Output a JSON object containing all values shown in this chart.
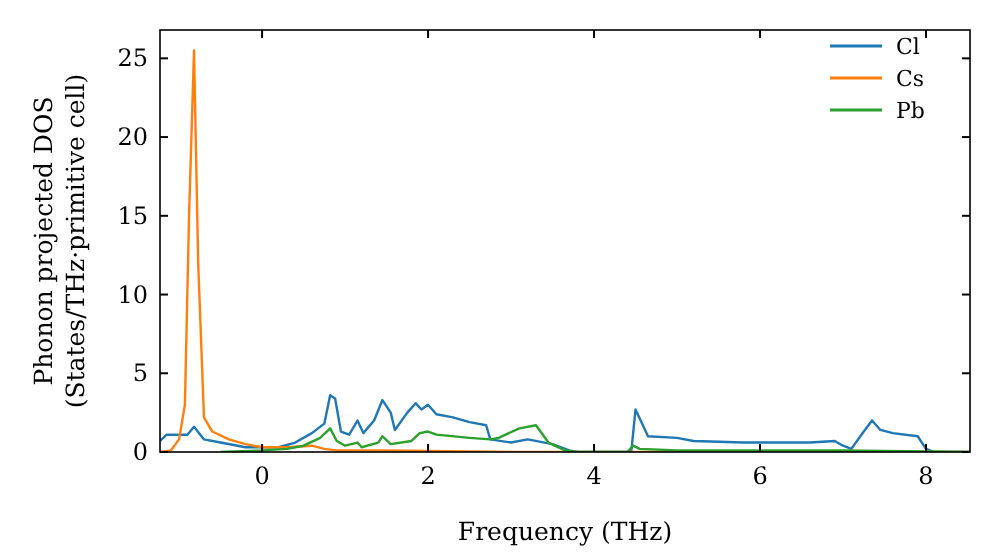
{
  "chart_data": {
    "type": "line",
    "xlabel": "Frequency (THz)",
    "ylabel": "Phonon projected DOS\n(States/THz·primitive cell)",
    "xlim": [
      -1.23,
      8.53
    ],
    "ylim": [
      0,
      26.8
    ],
    "xticks": [
      0,
      2,
      4,
      6,
      8
    ],
    "yticks": [
      0,
      5,
      10,
      15,
      20,
      25
    ],
    "grid": false,
    "legend": "top right",
    "marker": "none",
    "line_style": "solid",
    "series": [
      {
        "name": "Cl",
        "color": "#1f77b4",
        "x": [
          -1.23,
          -1.15,
          -0.9,
          -0.82,
          -0.7,
          -0.5,
          -0.2,
          0.2,
          0.4,
          0.6,
          0.75,
          0.82,
          0.88,
          0.95,
          1.05,
          1.15,
          1.22,
          1.35,
          1.45,
          1.55,
          1.6,
          1.75,
          1.85,
          1.92,
          2.0,
          2.1,
          2.3,
          2.5,
          2.7,
          2.75,
          3.0,
          3.2,
          3.5,
          3.7,
          3.8,
          4.4,
          4.45,
          4.5,
          4.57,
          4.65,
          5.0,
          5.2,
          5.8,
          6.6,
          6.9,
          7.0,
          7.1,
          7.25,
          7.35,
          7.45,
          7.6,
          7.9,
          8.0,
          8.1,
          8.53
        ],
        "values": [
          0.7,
          1.1,
          1.1,
          1.6,
          0.8,
          0.6,
          0.3,
          0.3,
          0.6,
          1.2,
          1.8,
          3.6,
          3.4,
          1.3,
          1.1,
          2.0,
          1.2,
          2.0,
          3.3,
          2.5,
          1.4,
          2.5,
          3.1,
          2.7,
          3.0,
          2.4,
          2.2,
          1.9,
          1.7,
          0.8,
          0.6,
          0.8,
          0.5,
          0.1,
          0,
          0,
          0.1,
          2.7,
          1.9,
          1.0,
          0.9,
          0.7,
          0.6,
          0.6,
          0.7,
          0.4,
          0.2,
          1.3,
          2.0,
          1.4,
          1.2,
          1.0,
          0.2,
          0,
          0
        ]
      },
      {
        "name": "Cs",
        "color": "#ff7f0e",
        "x": [
          -1.23,
          -1.1,
          -1.0,
          -0.93,
          -0.88,
          -0.82,
          -0.77,
          -0.7,
          -0.6,
          -0.4,
          -0.2,
          0,
          0.3,
          0.6,
          0.75,
          0.9,
          1.0,
          1.5,
          3.0,
          8.53
        ],
        "values": [
          0,
          0.1,
          0.8,
          3,
          15,
          25.5,
          12,
          2.2,
          1.3,
          0.8,
          0.5,
          0.3,
          0.3,
          0.4,
          0.2,
          0.1,
          0.1,
          0.1,
          0,
          0
        ]
      },
      {
        "name": "Pb",
        "color": "#2ca02c",
        "x": [
          -0.5,
          0.0,
          0.3,
          0.5,
          0.7,
          0.82,
          0.9,
          1.0,
          1.15,
          1.2,
          1.4,
          1.45,
          1.55,
          1.8,
          1.9,
          2.0,
          2.1,
          2.5,
          2.75,
          2.85,
          3.1,
          3.3,
          3.45,
          3.65,
          3.8,
          4.4,
          4.47,
          4.55,
          5.0,
          7.0,
          8.53
        ],
        "values": [
          0,
          0.1,
          0.2,
          0.4,
          0.9,
          1.5,
          0.7,
          0.4,
          0.6,
          0.3,
          0.6,
          1.0,
          0.5,
          0.7,
          1.2,
          1.3,
          1.1,
          0.9,
          0.8,
          0.9,
          1.5,
          1.7,
          0.6,
          0.1,
          0,
          0,
          0.4,
          0.2,
          0.1,
          0.1,
          0
        ]
      }
    ]
  }
}
